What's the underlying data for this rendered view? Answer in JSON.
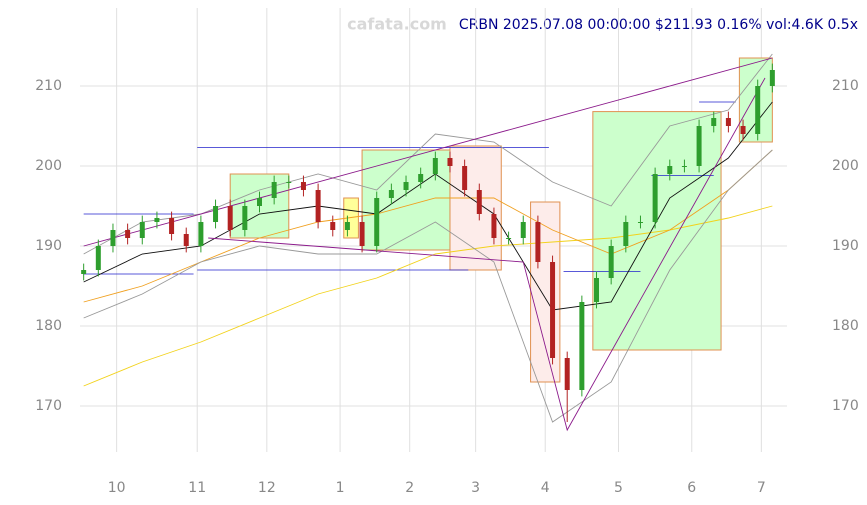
{
  "chart_data": {
    "type": "candlestick",
    "watermark": "cafata.com",
    "title": "CRBN 2025.07.08 00:00:00 $211.93 0.16% vol:4.6K 0.5x",
    "xlim": [
      -1,
      192
    ],
    "ylim": [
      164.25,
      219.75
    ],
    "yticks": [
      170,
      180,
      190,
      200,
      210
    ],
    "xticks": [
      {
        "value": 9,
        "label": "10"
      },
      {
        "value": 31,
        "label": "11"
      },
      {
        "value": 50,
        "label": "12"
      },
      {
        "value": 70,
        "label": "1"
      },
      {
        "value": 89,
        "label": "2"
      },
      {
        "value": 107,
        "label": "3"
      },
      {
        "value": 126,
        "label": "4"
      },
      {
        "value": 146,
        "label": "5"
      },
      {
        "value": 166,
        "label": "6"
      },
      {
        "value": 185,
        "label": "7"
      }
    ],
    "grid": true,
    "up_color": "#2e9e2e",
    "down_color": "#b22222",
    "x": [
      0,
      4,
      8,
      12,
      16,
      20,
      24,
      28,
      32,
      36,
      40,
      44,
      48,
      52,
      56,
      60,
      64,
      68,
      72,
      76,
      80,
      84,
      88,
      92,
      96,
      100,
      104,
      108,
      112,
      116,
      120,
      124,
      128,
      132,
      136,
      140,
      144,
      148,
      152,
      156,
      160,
      164,
      168,
      172,
      176,
      180,
      184,
      188
    ],
    "open": [
      186.5,
      187,
      190,
      192,
      191,
      193,
      193.5,
      191.5,
      190,
      193,
      195,
      192,
      195,
      196,
      198,
      198,
      197,
      193,
      192,
      193,
      190,
      196,
      197,
      198,
      199,
      201,
      200,
      197,
      194,
      191,
      191,
      193,
      188,
      176,
      172,
      183,
      186,
      190,
      193,
      193,
      199,
      200,
      200,
      205,
      206,
      205,
      204,
      210
    ],
    "high": [
      187.8,
      190.8,
      192.8,
      192.8,
      193.8,
      194.3,
      194.3,
      192.3,
      193.8,
      195.8,
      195.8,
      195.8,
      196.8,
      198.8,
      198.8,
      198.8,
      197.8,
      193.8,
      193.8,
      193.8,
      196.8,
      197.8,
      198.8,
      199.8,
      201.8,
      201.8,
      200.8,
      197.8,
      194.8,
      191.8,
      193.8,
      193.8,
      188.8,
      176.8,
      183.8,
      186.8,
      190.8,
      193.8,
      193.8,
      199.8,
      200.8,
      200.8,
      205.8,
      206.8,
      206.8,
      205.8,
      210.8,
      212.8
    ],
    "low": [
      185.7,
      186.2,
      189.2,
      190.2,
      190.2,
      192.2,
      190.7,
      189.2,
      189.2,
      192.2,
      191.2,
      191.2,
      194.2,
      195.2,
      197.2,
      196.2,
      192.2,
      191.2,
      191.2,
      189.2,
      189.2,
      195.2,
      196.2,
      197.2,
      198.2,
      199.2,
      196.2,
      193.2,
      190.2,
      190.2,
      190.2,
      187.2,
      175.2,
      168,
      171.2,
      182.2,
      185.2,
      189.2,
      192.2,
      192.2,
      198.2,
      199.2,
      199.2,
      204.2,
      204.2,
      203.2,
      203.2,
      209.2
    ],
    "close": [
      187,
      190,
      192,
      191,
      193,
      193.5,
      191.5,
      190,
      193,
      195,
      192,
      195,
      196,
      198,
      198,
      197,
      193,
      192,
      193,
      190,
      196,
      197,
      198,
      199,
      201,
      200,
      197,
      194,
      191,
      191,
      193,
      188,
      176,
      172,
      183,
      186,
      190,
      193,
      193,
      199,
      200,
      200,
      205,
      206,
      205,
      204,
      210,
      212
    ],
    "zones": [
      {
        "x": [
          40,
          56
        ],
        "y": [
          191,
          199
        ],
        "color": "#ccffcc"
      },
      {
        "x": [
          71,
          75
        ],
        "y": [
          191,
          196
        ],
        "color": "#ffff99"
      },
      {
        "x": [
          76,
          100
        ],
        "y": [
          189.5,
          202
        ],
        "color": "#ccffcc"
      },
      {
        "x": [
          100,
          114
        ],
        "y": [
          187,
          202.5
        ],
        "color": "#fdecea"
      },
      {
        "x": [
          122,
          130
        ],
        "y": [
          173,
          195.5
        ],
        "color": "#fdecea"
      },
      {
        "x": [
          139,
          174
        ],
        "y": [
          177,
          206.8
        ],
        "color": "#ccffcc"
      },
      {
        "x": [
          179,
          188
        ],
        "y": [
          203,
          213.5
        ],
        "color": "#ccffcc"
      }
    ],
    "lines": [
      {
        "x": [
          0,
          16,
          32,
          48,
          64,
          80,
          96,
          112,
          128,
          144,
          160,
          176,
          188
        ],
        "values": [
          172.5,
          175.5,
          178,
          181,
          184,
          186,
          189,
          190,
          190.5,
          191,
          192,
          193.5,
          195
        ],
        "color": "#f2d21b"
      },
      {
        "x": [
          0,
          16,
          32,
          48,
          64,
          80,
          96,
          112,
          128,
          144,
          160,
          176,
          188
        ],
        "values": [
          183,
          185,
          188,
          191,
          193,
          194,
          196,
          196,
          192,
          189,
          192,
          197,
          202
        ],
        "color": "#f0a020"
      },
      {
        "x": [
          0,
          16,
          32,
          48,
          64,
          80,
          96,
          112,
          128,
          144,
          160,
          176,
          188
        ],
        "values": [
          189,
          193,
          194,
          197,
          199,
          197,
          204,
          203,
          198,
          195,
          205,
          207,
          214
        ],
        "color": "#999999"
      },
      {
        "x": [
          0,
          16,
          32,
          48,
          64,
          80,
          96,
          112,
          128,
          144,
          160,
          176,
          188
        ],
        "values": [
          181,
          184,
          188,
          190,
          189,
          189,
          193,
          188,
          168,
          173,
          187,
          197,
          202
        ],
        "color": "#999999"
      },
      {
        "x": [
          0,
          16,
          32,
          48,
          64,
          80,
          96,
          112,
          128,
          144,
          160,
          176,
          188
        ],
        "values": [
          185.5,
          189,
          190,
          194,
          195,
          194,
          199,
          194,
          182,
          183,
          196,
          201,
          208
        ],
        "color": "#111111"
      },
      {
        "x": [
          0,
          188
        ],
        "values": [
          190,
          213.5
        ],
        "color": "#8b1a8b"
      },
      {
        "x": [
          34,
          120,
          132,
          186
        ],
        "values": [
          191,
          188,
          167,
          211
        ],
        "color": "#8b1a8b"
      }
    ],
    "levels": [
      {
        "x": [
          0,
          30
        ],
        "y": 194
      },
      {
        "x": [
          0,
          30
        ],
        "y": 186.5
      },
      {
        "x": [
          31,
          127
        ],
        "y": 202.3
      },
      {
        "x": [
          31,
          105
        ],
        "y": 187
      },
      {
        "x": [
          131,
          152
        ],
        "y": 186.8
      },
      {
        "x": [
          155,
          172
        ],
        "y": 198.8
      },
      {
        "x": [
          168,
          178
        ],
        "y": 208
      }
    ],
    "level_color": "#2222cc"
  }
}
